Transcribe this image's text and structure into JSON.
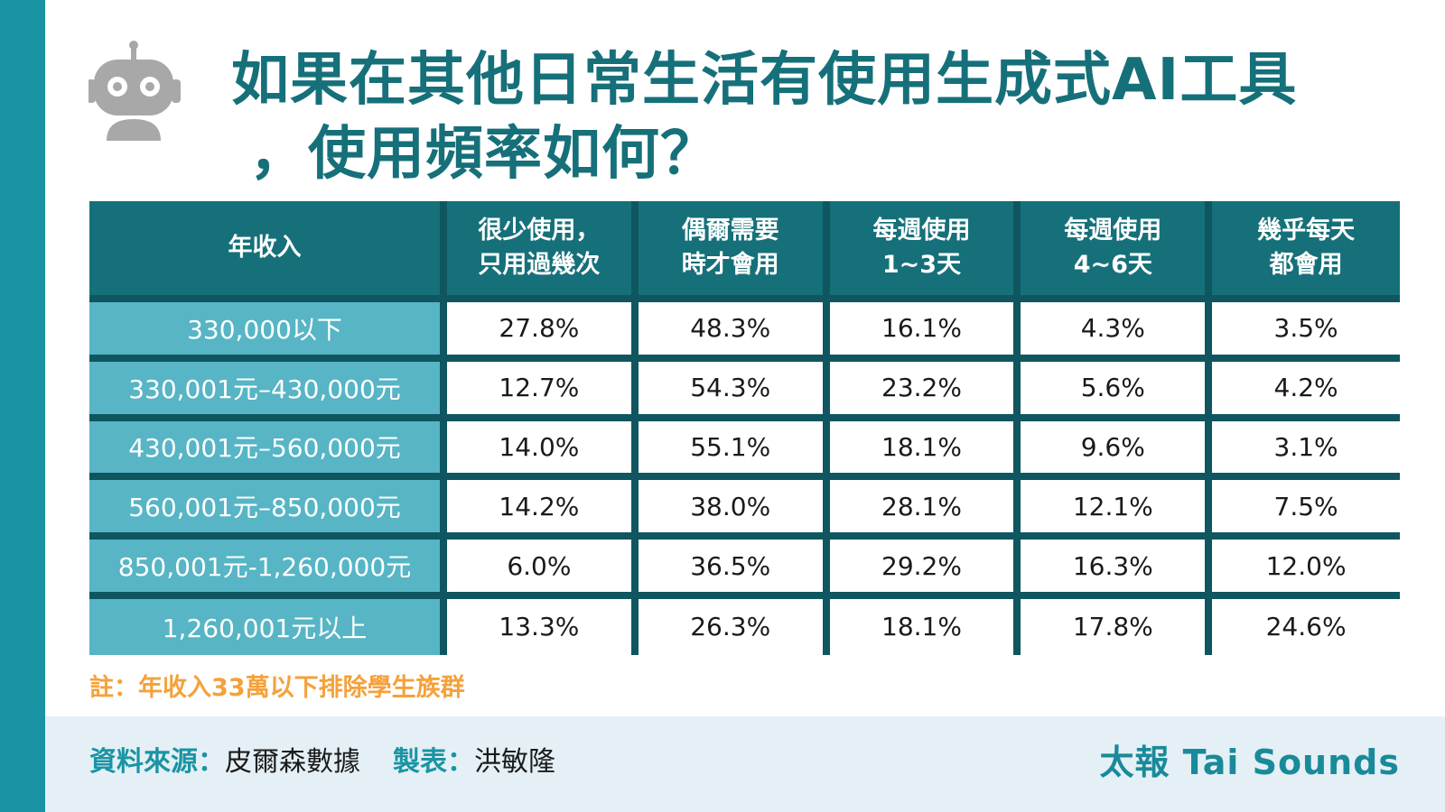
{
  "title": {
    "line1": "如果在其他日常生活有使用生成式AI工具",
    "line2": "，使用頻率如何？"
  },
  "icon": "robot-icon",
  "colors": {
    "accent": "#1a94a4",
    "header_bg": "#16707a",
    "row_head_bg": "#57b5c5",
    "note": "#f5a13a",
    "footer_bg": "#e4f0f6"
  },
  "chart_data": {
    "type": "table",
    "columns": [
      {
        "line1": "年收入",
        "line2": ""
      },
      {
        "line1": "很少使用，",
        "line2": "只用過幾次"
      },
      {
        "line1": "偶爾需要",
        "line2": "時才會用"
      },
      {
        "line1": "每週使用",
        "line2": "1~3天"
      },
      {
        "line1": "每週使用",
        "line2": "4~6天"
      },
      {
        "line1": "幾乎每天",
        "line2": "都會用"
      }
    ],
    "rows": [
      {
        "label": "330,000以下",
        "values": [
          "27.8%",
          "48.3%",
          "16.1%",
          "4.3%",
          "3.5%"
        ]
      },
      {
        "label": "330,001元–430,000元",
        "values": [
          "12.7%",
          "54.3%",
          "23.2%",
          "5.6%",
          "4.2%"
        ]
      },
      {
        "label": "430,001元–560,000元",
        "values": [
          "14.0%",
          "55.1%",
          "18.1%",
          "9.6%",
          "3.1%"
        ]
      },
      {
        "label": "560,001元–850,000元",
        "values": [
          "14.2%",
          "38.0%",
          "28.1%",
          "12.1%",
          "7.5%"
        ]
      },
      {
        "label": "850,001元-1,260,000元",
        "values": [
          "6.0%",
          "36.5%",
          "29.2%",
          "16.3%",
          "12.0%"
        ]
      },
      {
        "label": "1,260,001元以上",
        "values": [
          "13.3%",
          "26.3%",
          "18.1%",
          "17.8%",
          "24.6%"
        ]
      }
    ]
  },
  "note": "註：年收入33萬以下排除學生族群",
  "footer": {
    "source_label": "資料來源：",
    "source_value": "皮爾森數據",
    "maker_label": "製表：",
    "maker_value": "洪敏隆",
    "brand": "太報 Tai Sounds"
  }
}
